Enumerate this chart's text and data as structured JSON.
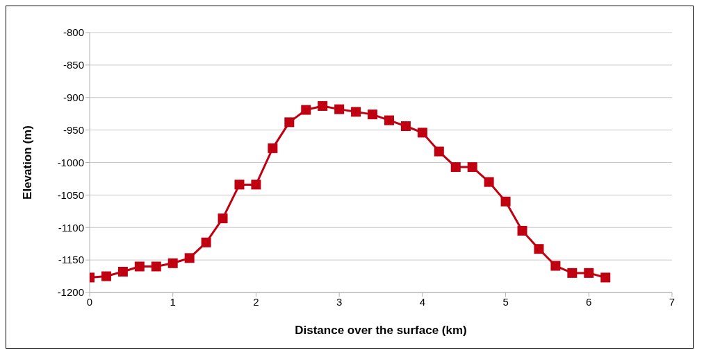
{
  "chart_data": {
    "type": "line",
    "xlabel": "Distance over the surface (km)",
    "ylabel": "Elevation (m)",
    "x": [
      0,
      0.2,
      0.4,
      0.6,
      0.8,
      1,
      1.2,
      1.4,
      1.6,
      1.8,
      2,
      2.2,
      2.4,
      2.6,
      2.8,
      3,
      3.2,
      3.4,
      3.6,
      3.8,
      4,
      4.2,
      4.4,
      4.6,
      4.8,
      5,
      5.2,
      5.4,
      5.6,
      5.8,
      6,
      6.2
    ],
    "series": [
      {
        "color": "#c00010",
        "values": [
          -1177,
          -1175,
          -1168,
          -1160,
          -1160,
          -1155,
          -1147,
          -1123,
          -1086,
          -1034,
          -1034,
          -978,
          -938,
          -919,
          -913,
          -918,
          -922,
          -926,
          -935,
          -944,
          -954,
          -983,
          -1007,
          -1007,
          -1030,
          -1060,
          -1105,
          -1133,
          -1159,
          -1170,
          -1170,
          -1177
        ]
      }
    ],
    "xlim": [
      0,
      7
    ],
    "xticks": [
      0,
      1,
      2,
      3,
      4,
      5,
      6,
      7
    ],
    "ylim": [
      -1200,
      -800
    ],
    "yticks": [
      -1200,
      -1150,
      -1100,
      -1050,
      -1000,
      -950,
      -900,
      -850,
      -800
    ],
    "grid": "y",
    "legend": false,
    "marker": "square",
    "line_style": "solid"
  }
}
